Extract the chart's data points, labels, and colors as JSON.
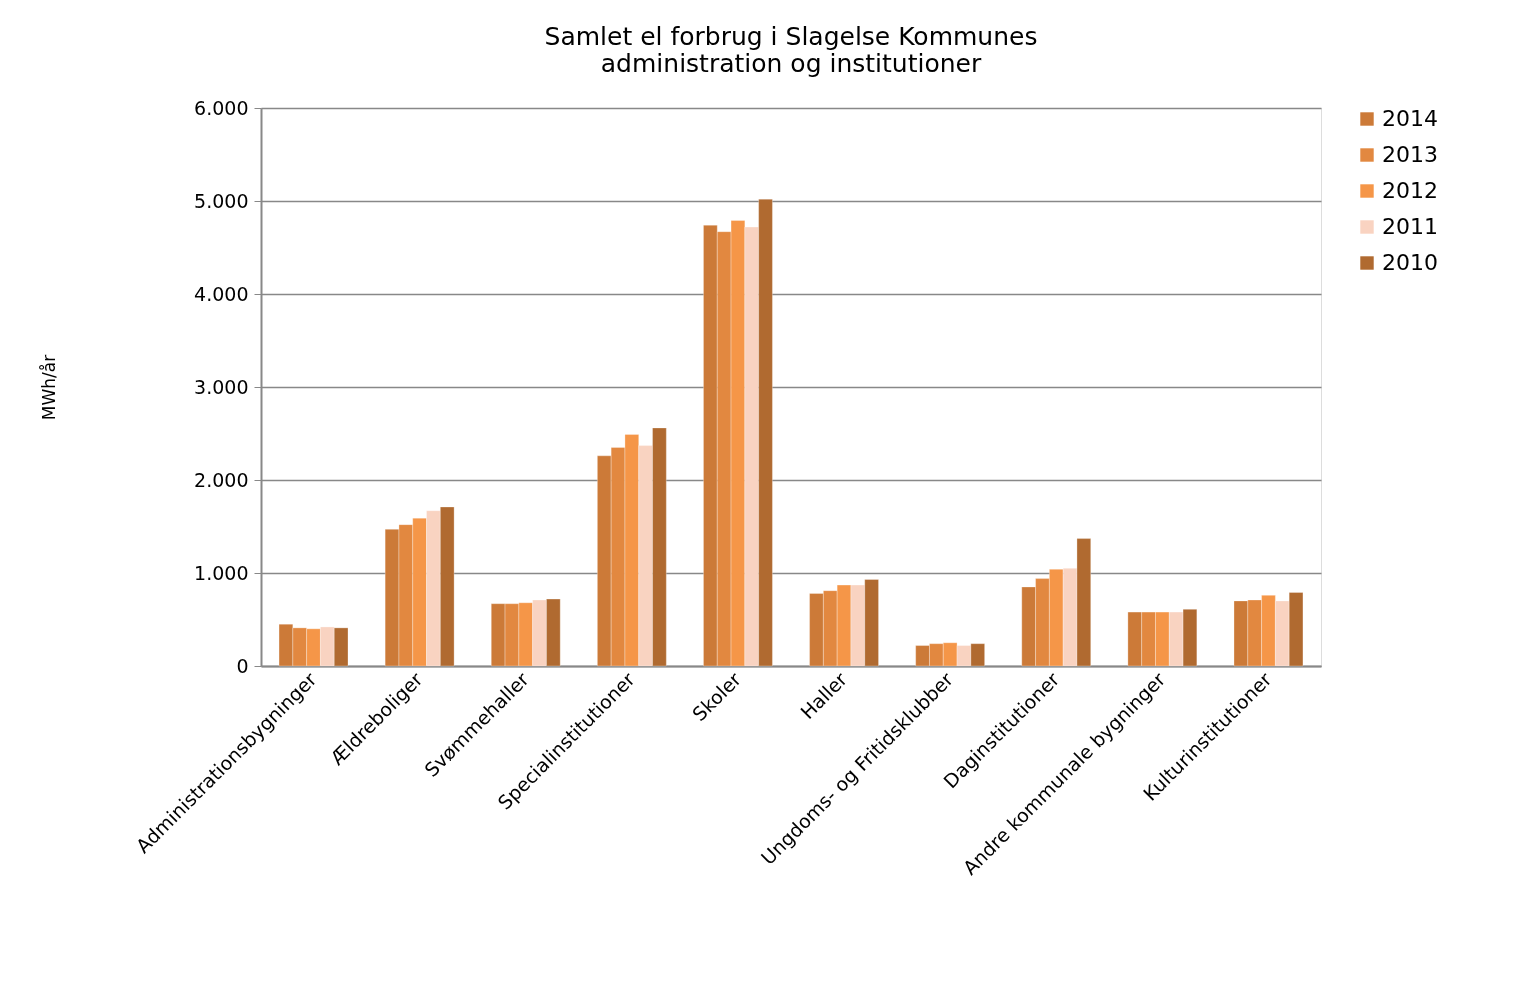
{
  "chart_data": {
    "type": "bar",
    "title": [
      "Samlet el forbrug i Slagelse Kommunes",
      "administration og institutioner"
    ],
    "ylabel": "MWh/år",
    "categories": [
      "Administrationsbygninger",
      "Ældreboliger",
      "Svømmehaller",
      "Specialinstitutioner",
      "Skoler",
      "Haller",
      "Ungdoms- og Fritidsklubber",
      "Daginstitutioner",
      "Andre kommunale bygninger",
      "Kulturinstitutioner"
    ],
    "series": [
      {
        "name": "2014",
        "color": "#cc7a38",
        "values": [
          450,
          1470,
          670,
          2260,
          4740,
          780,
          220,
          850,
          580,
          700
        ]
      },
      {
        "name": "2013",
        "color": "#e28840",
        "values": [
          410,
          1520,
          670,
          2350,
          4670,
          810,
          240,
          940,
          580,
          710
        ]
      },
      {
        "name": "2012",
        "color": "#f59648",
        "values": [
          400,
          1590,
          680,
          2490,
          4790,
          870,
          250,
          1040,
          580,
          760
        ]
      },
      {
        "name": "2011",
        "color": "#f9d3c1",
        "values": [
          420,
          1670,
          710,
          2370,
          4720,
          870,
          220,
          1050,
          580,
          700
        ]
      },
      {
        "name": "2010",
        "color": "#b06a30",
        "values": [
          410,
          1710,
          720,
          2560,
          5020,
          930,
          240,
          1370,
          610,
          790
        ]
      }
    ],
    "ylim": [
      0,
      6000
    ],
    "yticks": [
      0,
      {
        "value": 1000,
        "label": "1.000"
      },
      {
        "value": 2000,
        "label": "2.000"
      },
      {
        "value": 3000,
        "label": "3.000"
      },
      {
        "value": 4000,
        "label": "4.000"
      },
      {
        "value": 5000,
        "label": "5.000"
      },
      {
        "value": 6000,
        "label": "6.000"
      }
    ],
    "grid": "y",
    "legend": "right"
  }
}
